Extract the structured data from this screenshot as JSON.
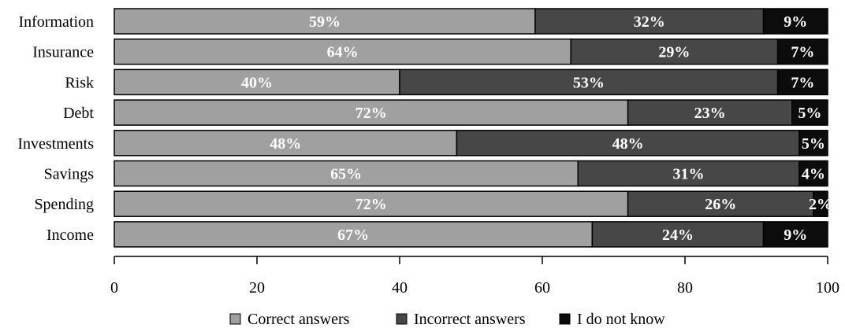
{
  "chart_data": {
    "type": "bar",
    "orientation": "horizontal",
    "stacked": true,
    "categories": [
      "Information",
      "Insurance",
      "Risk",
      "Debt",
      "Investments",
      "Savings",
      "Spending",
      "Income"
    ],
    "series": [
      {
        "name": "Correct answers",
        "color": "#a0a0a0",
        "values": [
          59,
          64,
          40,
          72,
          48,
          65,
          72,
          67
        ],
        "labels": [
          "59%",
          "64%",
          "40%",
          "72%",
          "48%",
          "65%",
          "72%",
          "67%"
        ]
      },
      {
        "name": "Incorrect answers",
        "color": "#474747",
        "values": [
          32,
          29,
          53,
          23,
          48,
          31,
          26,
          24
        ],
        "labels": [
          "32%",
          "29%",
          "53%",
          "23%",
          "48%",
          "31%",
          "26%",
          "24%"
        ]
      },
      {
        "name": "I do not know",
        "color": "#0c0c0c",
        "values": [
          9,
          7,
          7,
          5,
          5,
          4,
          2,
          9
        ],
        "labels": [
          "9%",
          "7%",
          "7%",
          "5%",
          "5%",
          "4%",
          "2%",
          "9%"
        ]
      }
    ],
    "xlim": [
      0,
      100
    ],
    "xticks": [
      0,
      20,
      40,
      60,
      80,
      100
    ],
    "title": "",
    "xlabel": "",
    "ylabel": "",
    "grid": false,
    "legend": "bottom"
  }
}
